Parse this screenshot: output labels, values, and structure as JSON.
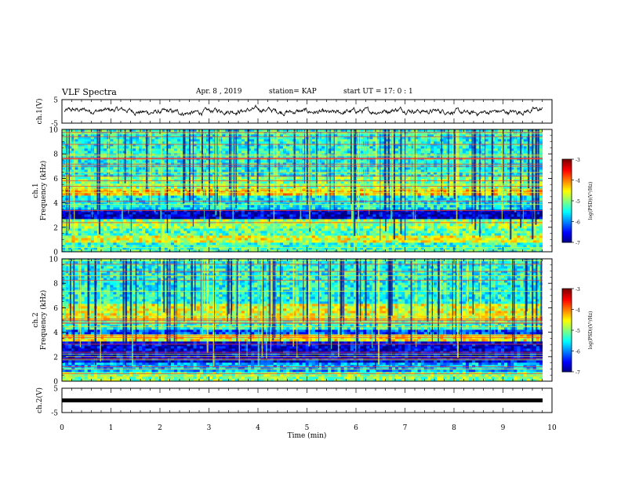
{
  "header": {
    "title": "VLF Spectra",
    "date": "Apr. 8  , 2019",
    "station": "station= KAP",
    "start": "start  UT =   17: 0  : 1"
  },
  "chart_data": [
    {
      "type": "line",
      "panel": "ch1-waveform",
      "ylabel": "ch.1(V)",
      "ylim": [
        -5,
        5
      ],
      "yticks": [
        "5",
        "-5"
      ],
      "xlim": [
        0,
        10
      ],
      "baseline": 0,
      "amplitude_typical": 1.5,
      "grid": false
    },
    {
      "type": "heatmap",
      "panel": "ch1-spectrogram",
      "ylabel": "ch.1\nFrequency  (kHz)",
      "ylim": [
        0,
        10
      ],
      "yticks": [
        "0",
        "2",
        "4",
        "6",
        "8",
        "10"
      ],
      "xlim": [
        0,
        9.8
      ],
      "frequency_bands_khz": [
        {
          "from": 0.0,
          "to": 0.8,
          "level": -5.3
        },
        {
          "from": 0.8,
          "to": 1.3,
          "level": -4.6
        },
        {
          "from": 1.3,
          "to": 2.0,
          "level": -5.2
        },
        {
          "from": 2.0,
          "to": 2.6,
          "level": -4.9
        },
        {
          "from": 2.6,
          "to": 3.4,
          "level": -6.7
        },
        {
          "from": 3.4,
          "to": 4.7,
          "level": -5.5
        },
        {
          "from": 4.7,
          "to": 5.2,
          "level": -4.3
        },
        {
          "from": 5.2,
          "to": 6.2,
          "level": -5.0
        },
        {
          "from": 6.2,
          "to": 10.0,
          "level": -5.4
        }
      ],
      "colorbar": {
        "label": "log(PSD)(V²/Hz)",
        "range": [
          -7,
          -3
        ],
        "ticks": [
          "-3",
          "-4",
          "-5",
          "-6",
          "-7"
        ]
      }
    },
    {
      "type": "heatmap",
      "panel": "ch2-spectrogram",
      "ylabel": "ch.2\nFrequency  (kHz)",
      "ylim": [
        0,
        10
      ],
      "yticks": [
        "0",
        "2",
        "4",
        "6",
        "8",
        "10"
      ],
      "xlim": [
        0,
        9.8
      ],
      "frequency_bands_khz": [
        {
          "from": 0.0,
          "to": 0.8,
          "level": -5.0
        },
        {
          "from": 0.8,
          "to": 1.6,
          "level": -5.8
        },
        {
          "from": 1.6,
          "to": 3.2,
          "level": -6.6
        },
        {
          "from": 3.2,
          "to": 3.8,
          "level": -4.5
        },
        {
          "from": 3.8,
          "to": 4.3,
          "level": -6.2
        },
        {
          "from": 4.3,
          "to": 5.0,
          "level": -5.3
        },
        {
          "from": 5.0,
          "to": 6.3,
          "level": -4.6
        },
        {
          "from": 6.3,
          "to": 10.0,
          "level": -5.4
        }
      ],
      "colorbar": {
        "label": "log(PSD)(V²/Hz)",
        "range": [
          -7,
          -3
        ],
        "ticks": [
          "-3",
          "-4",
          "-5",
          "-6",
          "-7"
        ]
      }
    },
    {
      "type": "line",
      "panel": "ch2-waveform",
      "ylabel": "ch.2(V)",
      "ylim": [
        -5,
        5
      ],
      "yticks": [
        "5",
        "-5"
      ],
      "xlim": [
        0,
        10
      ],
      "baseline": 0,
      "amplitude_typical": 0.3,
      "xlabel": "Time  (min)",
      "xticks": [
        "0",
        "1",
        "2",
        "3",
        "4",
        "5",
        "6",
        "7",
        "8",
        "9",
        "10"
      ],
      "grid": false
    }
  ]
}
